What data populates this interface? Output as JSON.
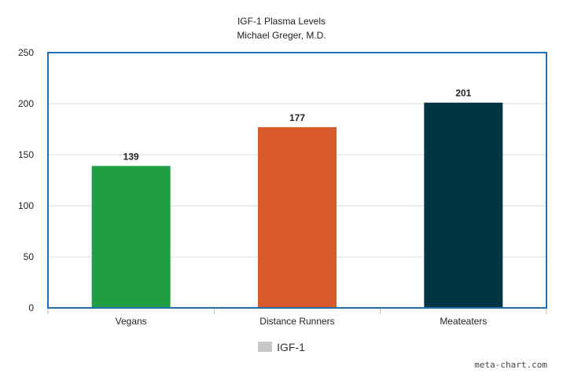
{
  "chart_data": {
    "type": "bar",
    "title": "IGF-1 Plasma Levels",
    "subtitle": "Michael Greger, M.D.",
    "categories": [
      "Vegans",
      "Distance Runners",
      "Meateaters"
    ],
    "series": [
      {
        "name": "IGF-1",
        "values": [
          139,
          177,
          201
        ],
        "colors": [
          "#1f9e44",
          "#d95a2b",
          "#003541"
        ]
      }
    ],
    "data_labels": [
      "139",
      "177",
      "201"
    ],
    "ylim": [
      0,
      250
    ],
    "yticks": [
      0,
      50,
      100,
      150,
      200,
      250
    ],
    "grid": true,
    "legend": "bottom-center",
    "frame_color": "#1f6fb5",
    "legend_swatch_color": "#c8c8c8"
  },
  "watermark": "meta-chart.com"
}
